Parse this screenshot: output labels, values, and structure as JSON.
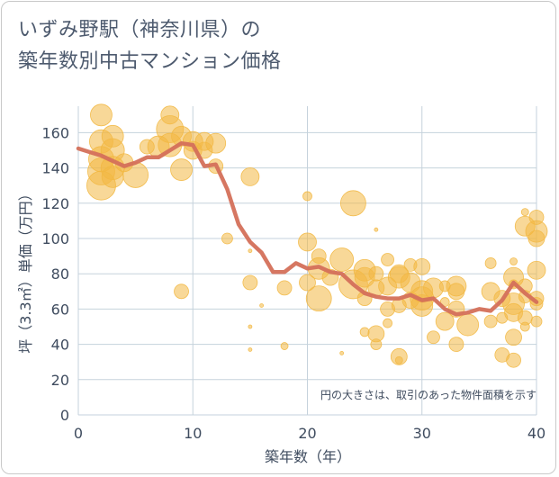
{
  "title_line1": "いずみ野駅（神奈川県）の",
  "title_line2": "築年数別中古マンション価格",
  "colors": {
    "bubble": "#f2b843",
    "line": "#d4705a",
    "grid": "#c5d2dc",
    "axis": "#3f4c5f"
  },
  "chart_data": {
    "type": "scatter",
    "xlabel": "築年数（年）",
    "ylabel": "坪（3.3㎡）単価（万円）",
    "xlim": [
      0,
      40
    ],
    "ylim": [
      0,
      175
    ],
    "xticks": [
      0,
      10,
      20,
      30,
      40
    ],
    "yticks": [
      0,
      20,
      40,
      60,
      80,
      100,
      120,
      140,
      160
    ],
    "grid": true,
    "annotation": "円の大きさは、取引のあった物件面積を示す",
    "bubbles": [
      {
        "x": 2,
        "y": 170,
        "s": 12
      },
      {
        "x": 2,
        "y": 155,
        "s": 13
      },
      {
        "x": 3,
        "y": 158,
        "s": 12
      },
      {
        "x": 2,
        "y": 145,
        "s": 14
      },
      {
        "x": 3,
        "y": 150,
        "s": 13
      },
      {
        "x": 2,
        "y": 138,
        "s": 15
      },
      {
        "x": 3,
        "y": 140,
        "s": 13
      },
      {
        "x": 2,
        "y": 130,
        "s": 16
      },
      {
        "x": 3,
        "y": 135,
        "s": 12
      },
      {
        "x": 4,
        "y": 143,
        "s": 10
      },
      {
        "x": 5,
        "y": 136,
        "s": 14
      },
      {
        "x": 6,
        "y": 152,
        "s": 8
      },
      {
        "x": 7,
        "y": 152,
        "s": 12
      },
      {
        "x": 8,
        "y": 170,
        "s": 10
      },
      {
        "x": 8,
        "y": 162,
        "s": 15
      },
      {
        "x": 8,
        "y": 153,
        "s": 13
      },
      {
        "x": 9,
        "y": 158,
        "s": 11
      },
      {
        "x": 9,
        "y": 139,
        "s": 12
      },
      {
        "x": 10,
        "y": 155,
        "s": 11
      },
      {
        "x": 10,
        "y": 150,
        "s": 10
      },
      {
        "x": 11,
        "y": 155,
        "s": 10
      },
      {
        "x": 11,
        "y": 150,
        "s": 9
      },
      {
        "x": 12,
        "y": 154,
        "s": 11
      },
      {
        "x": 12,
        "y": 141,
        "s": 8
      },
      {
        "x": 13,
        "y": 100,
        "s": 6
      },
      {
        "x": 15,
        "y": 135,
        "s": 10
      },
      {
        "x": 9,
        "y": 70,
        "s": 8
      },
      {
        "x": 15,
        "y": 75,
        "s": 8
      },
      {
        "x": 15,
        "y": 93,
        "s": 2
      },
      {
        "x": 16,
        "y": 62,
        "s": 2
      },
      {
        "x": 15,
        "y": 50,
        "s": 2
      },
      {
        "x": 15,
        "y": 37,
        "s": 2
      },
      {
        "x": 18,
        "y": 72,
        "s": 8
      },
      {
        "x": 18,
        "y": 39,
        "s": 4
      },
      {
        "x": 20,
        "y": 124,
        "s": 5
      },
      {
        "x": 20,
        "y": 98,
        "s": 10
      },
      {
        "x": 20,
        "y": 75,
        "s": 9
      },
      {
        "x": 21,
        "y": 90,
        "s": 8
      },
      {
        "x": 21,
        "y": 83,
        "s": 12
      },
      {
        "x": 21,
        "y": 66,
        "s": 14
      },
      {
        "x": 22,
        "y": 78,
        "s": 9
      },
      {
        "x": 23,
        "y": 88,
        "s": 13
      },
      {
        "x": 23,
        "y": 35,
        "s": 2
      },
      {
        "x": 24,
        "y": 120,
        "s": 14
      },
      {
        "x": 24,
        "y": 74,
        "s": 16
      },
      {
        "x": 25,
        "y": 82,
        "s": 12
      },
      {
        "x": 25,
        "y": 78,
        "s": 11
      },
      {
        "x": 25,
        "y": 66,
        "s": 8
      },
      {
        "x": 25,
        "y": 47,
        "s": 5
      },
      {
        "x": 26,
        "y": 105,
        "s": 2
      },
      {
        "x": 26,
        "y": 80,
        "s": 8
      },
      {
        "x": 26,
        "y": 72,
        "s": 9
      },
      {
        "x": 26,
        "y": 46,
        "s": 9
      },
      {
        "x": 26,
        "y": 40,
        "s": 6
      },
      {
        "x": 27,
        "y": 88,
        "s": 7
      },
      {
        "x": 27,
        "y": 73,
        "s": 10
      },
      {
        "x": 27,
        "y": 60,
        "s": 8
      },
      {
        "x": 27,
        "y": 52,
        "s": 5
      },
      {
        "x": 28,
        "y": 80,
        "s": 10
      },
      {
        "x": 28,
        "y": 78,
        "s": 12
      },
      {
        "x": 28,
        "y": 62,
        "s": 8
      },
      {
        "x": 28,
        "y": 33,
        "s": 9
      },
      {
        "x": 28,
        "y": 31,
        "s": 4
      },
      {
        "x": 29,
        "y": 85,
        "s": 7
      },
      {
        "x": 29,
        "y": 75,
        "s": 11
      },
      {
        "x": 29,
        "y": 65,
        "s": 9
      },
      {
        "x": 30,
        "y": 84,
        "s": 9
      },
      {
        "x": 30,
        "y": 70,
        "s": 12
      },
      {
        "x": 30,
        "y": 66,
        "s": 13
      },
      {
        "x": 30,
        "y": 62,
        "s": 12
      },
      {
        "x": 31,
        "y": 72,
        "s": 11
      },
      {
        "x": 31,
        "y": 44,
        "s": 7
      },
      {
        "x": 32,
        "y": 73,
        "s": 6
      },
      {
        "x": 32,
        "y": 64,
        "s": 5
      },
      {
        "x": 32,
        "y": 53,
        "s": 10
      },
      {
        "x": 33,
        "y": 73,
        "s": 11
      },
      {
        "x": 33,
        "y": 70,
        "s": 9
      },
      {
        "x": 33,
        "y": 60,
        "s": 9
      },
      {
        "x": 33,
        "y": 40,
        "s": 8
      },
      {
        "x": 34,
        "y": 51,
        "s": 12
      },
      {
        "x": 36,
        "y": 86,
        "s": 6
      },
      {
        "x": 36,
        "y": 70,
        "s": 10
      },
      {
        "x": 36,
        "y": 53,
        "s": 7
      },
      {
        "x": 37,
        "y": 66,
        "s": 9
      },
      {
        "x": 37,
        "y": 55,
        "s": 6
      },
      {
        "x": 37,
        "y": 34,
        "s": 8
      },
      {
        "x": 38,
        "y": 87,
        "s": 4
      },
      {
        "x": 38,
        "y": 78,
        "s": 11
      },
      {
        "x": 38,
        "y": 74,
        "s": 5
      },
      {
        "x": 38,
        "y": 63,
        "s": 12
      },
      {
        "x": 38,
        "y": 58,
        "s": 10
      },
      {
        "x": 38,
        "y": 44,
        "s": 9
      },
      {
        "x": 38,
        "y": 31,
        "s": 8
      },
      {
        "x": 39,
        "y": 115,
        "s": 4
      },
      {
        "x": 39,
        "y": 107,
        "s": 11
      },
      {
        "x": 39,
        "y": 73,
        "s": 8
      },
      {
        "x": 39,
        "y": 67,
        "s": 7
      },
      {
        "x": 39,
        "y": 55,
        "s": 8
      },
      {
        "x": 39,
        "y": 50,
        "s": 5
      },
      {
        "x": 40,
        "y": 112,
        "s": 8
      },
      {
        "x": 40,
        "y": 104,
        "s": 12
      },
      {
        "x": 40,
        "y": 100,
        "s": 9
      },
      {
        "x": 40,
        "y": 82,
        "s": 10
      },
      {
        "x": 40,
        "y": 66,
        "s": 8
      },
      {
        "x": 40,
        "y": 63,
        "s": 7
      },
      {
        "x": 40,
        "y": 53,
        "s": 6
      }
    ],
    "trend": [
      {
        "x": 0,
        "y": 151
      },
      {
        "x": 1,
        "y": 149
      },
      {
        "x": 2,
        "y": 147
      },
      {
        "x": 3,
        "y": 144
      },
      {
        "x": 4,
        "y": 141
      },
      {
        "x": 5,
        "y": 143
      },
      {
        "x": 6,
        "y": 146
      },
      {
        "x": 7,
        "y": 146
      },
      {
        "x": 8,
        "y": 150
      },
      {
        "x": 9,
        "y": 154
      },
      {
        "x": 10,
        "y": 153
      },
      {
        "x": 11,
        "y": 141
      },
      {
        "x": 12,
        "y": 142
      },
      {
        "x": 13,
        "y": 128
      },
      {
        "x": 14,
        "y": 108
      },
      {
        "x": 15,
        "y": 98
      },
      {
        "x": 16,
        "y": 92
      },
      {
        "x": 17,
        "y": 81
      },
      {
        "x": 18,
        "y": 81
      },
      {
        "x": 19,
        "y": 86
      },
      {
        "x": 20,
        "y": 83
      },
      {
        "x": 21,
        "y": 84
      },
      {
        "x": 22,
        "y": 81
      },
      {
        "x": 23,
        "y": 80
      },
      {
        "x": 24,
        "y": 74
      },
      {
        "x": 25,
        "y": 69
      },
      {
        "x": 26,
        "y": 67
      },
      {
        "x": 27,
        "y": 66
      },
      {
        "x": 28,
        "y": 66
      },
      {
        "x": 29,
        "y": 68
      },
      {
        "x": 30,
        "y": 65
      },
      {
        "x": 31,
        "y": 66
      },
      {
        "x": 32,
        "y": 60
      },
      {
        "x": 33,
        "y": 57
      },
      {
        "x": 34,
        "y": 58
      },
      {
        "x": 35,
        "y": 60
      },
      {
        "x": 36,
        "y": 59
      },
      {
        "x": 37,
        "y": 65
      },
      {
        "x": 38,
        "y": 75
      },
      {
        "x": 39,
        "y": 69
      },
      {
        "x": 40,
        "y": 64
      }
    ]
  }
}
